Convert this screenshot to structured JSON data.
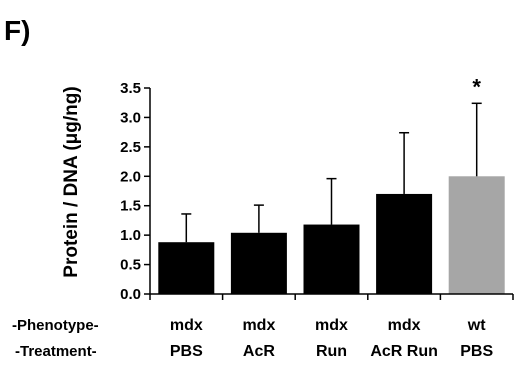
{
  "figure": {
    "panel_label": "F)"
  },
  "chart_data": {
    "type": "bar",
    "ylabel": "Protein / DNA (μg/ng)",
    "ylim": [
      0,
      3.5
    ],
    "yticks": [
      "0.0",
      "0.5",
      "1.0",
      "1.5",
      "2.0",
      "2.5",
      "3.0",
      "3.5"
    ],
    "grid": false,
    "legend": "none",
    "row_labels": {
      "phenotype": "-Phenotype-",
      "treatment": "-Treatment-"
    },
    "categories": [
      {
        "phenotype": "mdx",
        "treatment": "PBS"
      },
      {
        "phenotype": "mdx",
        "treatment": "AcR"
      },
      {
        "phenotype": "mdx",
        "treatment": "Run"
      },
      {
        "phenotype": "mdx",
        "treatment": "AcR Run"
      },
      {
        "phenotype": "wt",
        "treatment": "PBS"
      }
    ],
    "values": [
      0.88,
      1.04,
      1.18,
      1.7,
      2.0
    ],
    "error_upper": [
      0.48,
      0.47,
      0.78,
      1.04,
      1.24
    ],
    "bar_colors": [
      "#000000",
      "#000000",
      "#000000",
      "#000000",
      "#a6a6a6"
    ],
    "annotations": [
      "",
      "",
      "",
      "",
      "*"
    ]
  }
}
